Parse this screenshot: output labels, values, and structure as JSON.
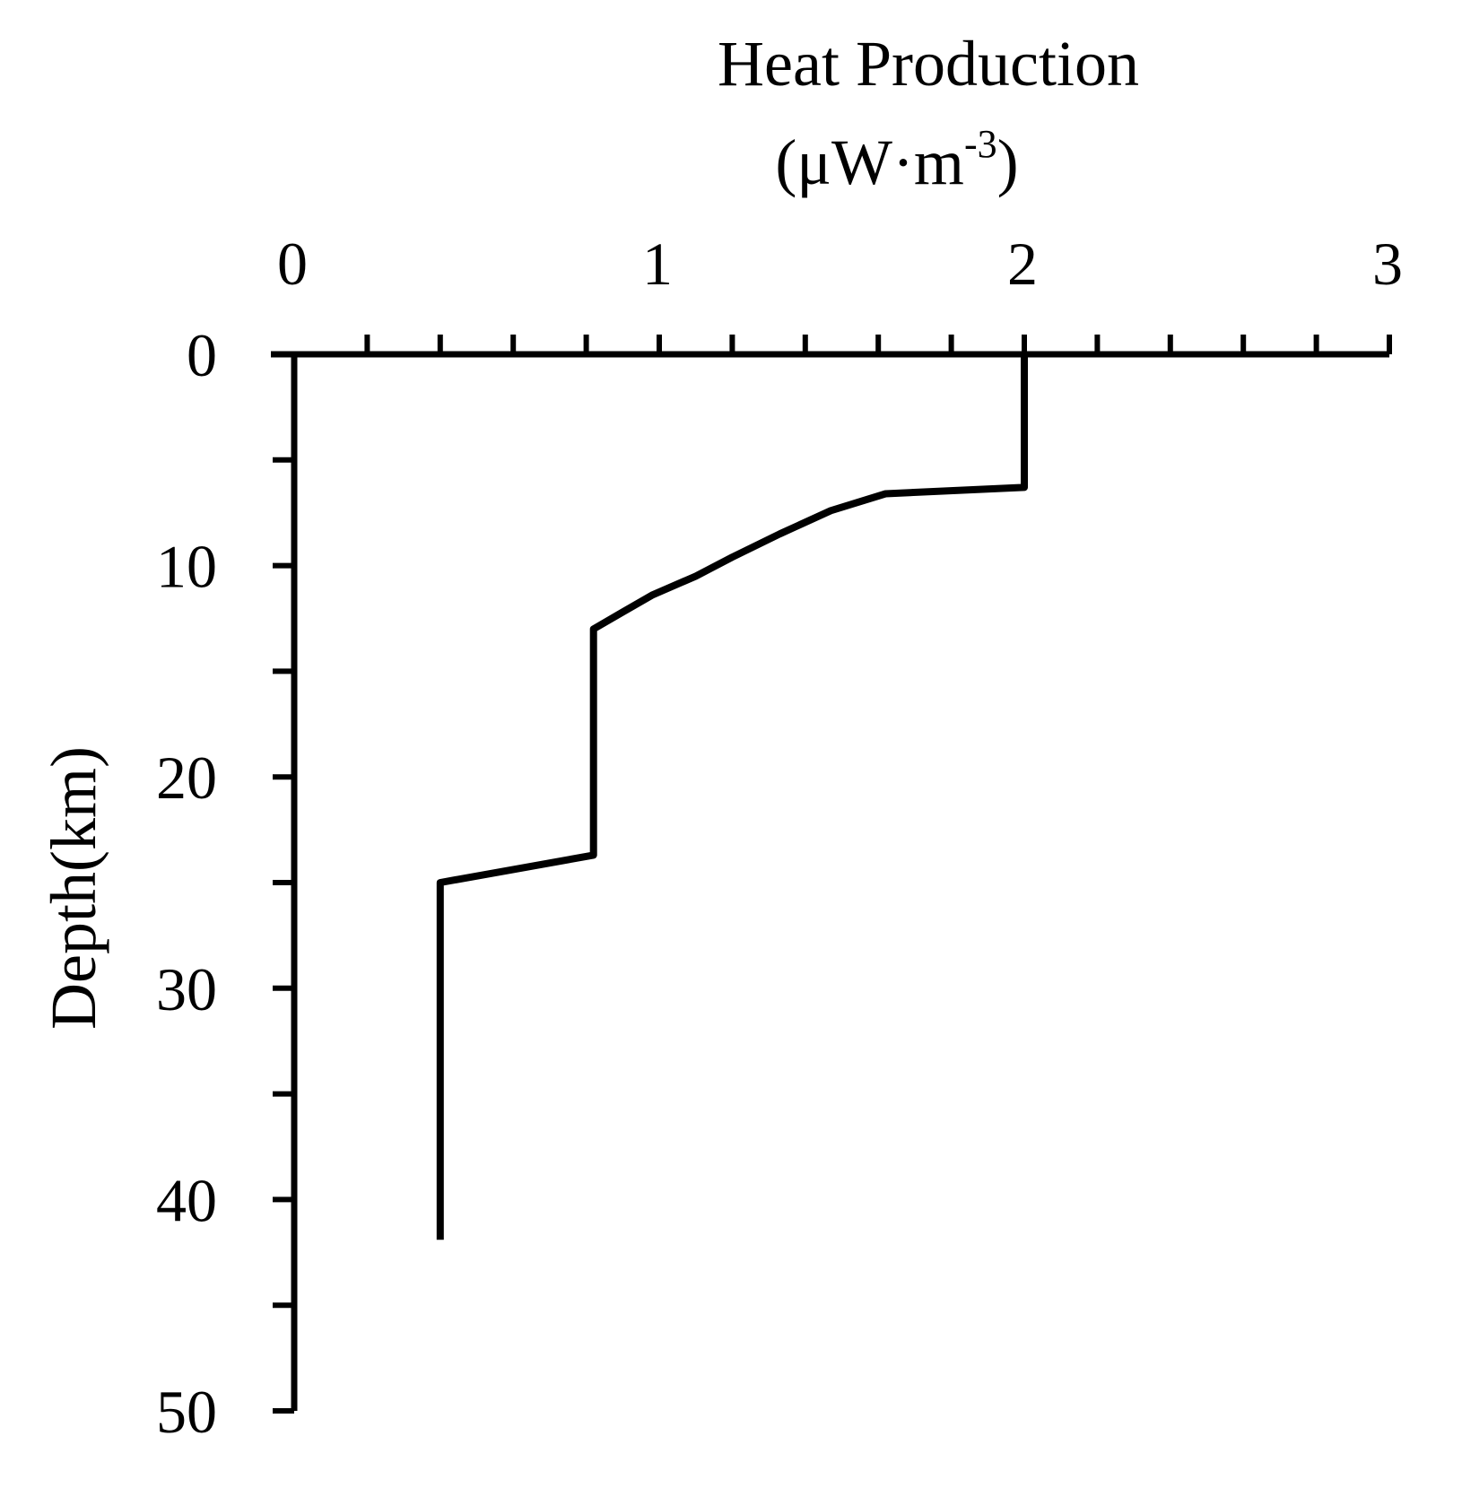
{
  "chart_data": {
    "type": "line",
    "xlabel_line1": "Heat Production",
    "xlabel_unit_prefix": "(μW·m",
    "xlabel_unit_exp": "-3",
    "xlabel_unit_suffix": ")",
    "ylabel": "Depth(km)",
    "xlim": [
      0,
      3
    ],
    "ylim": [
      0,
      50
    ],
    "y_inverted": true,
    "x_axis_position": "top",
    "x_ticks": [
      0,
      1,
      2,
      3
    ],
    "x_tick_labels": [
      "0",
      "1",
      "2",
      "3"
    ],
    "x_minor_step": 0.2,
    "y_ticks": [
      0,
      10,
      20,
      30,
      40,
      50
    ],
    "y_tick_labels": [
      "0",
      "10",
      "20",
      "30",
      "40",
      "50"
    ],
    "y_minor_step": 5,
    "grid": false,
    "series": [
      {
        "x": [
          2.0,
          2.0,
          1.62,
          1.47,
          1.33,
          1.2,
          1.1,
          0.98,
          0.9,
          0.83,
          0.82,
          0.82,
          0.4,
          0.4
        ],
        "y": [
          0,
          6.3,
          6.6,
          7.4,
          8.5,
          9.6,
          10.5,
          11.4,
          12.2,
          12.9,
          13.0,
          23.7,
          25.0,
          41.9
        ],
        "color": "#000000"
      }
    ]
  }
}
